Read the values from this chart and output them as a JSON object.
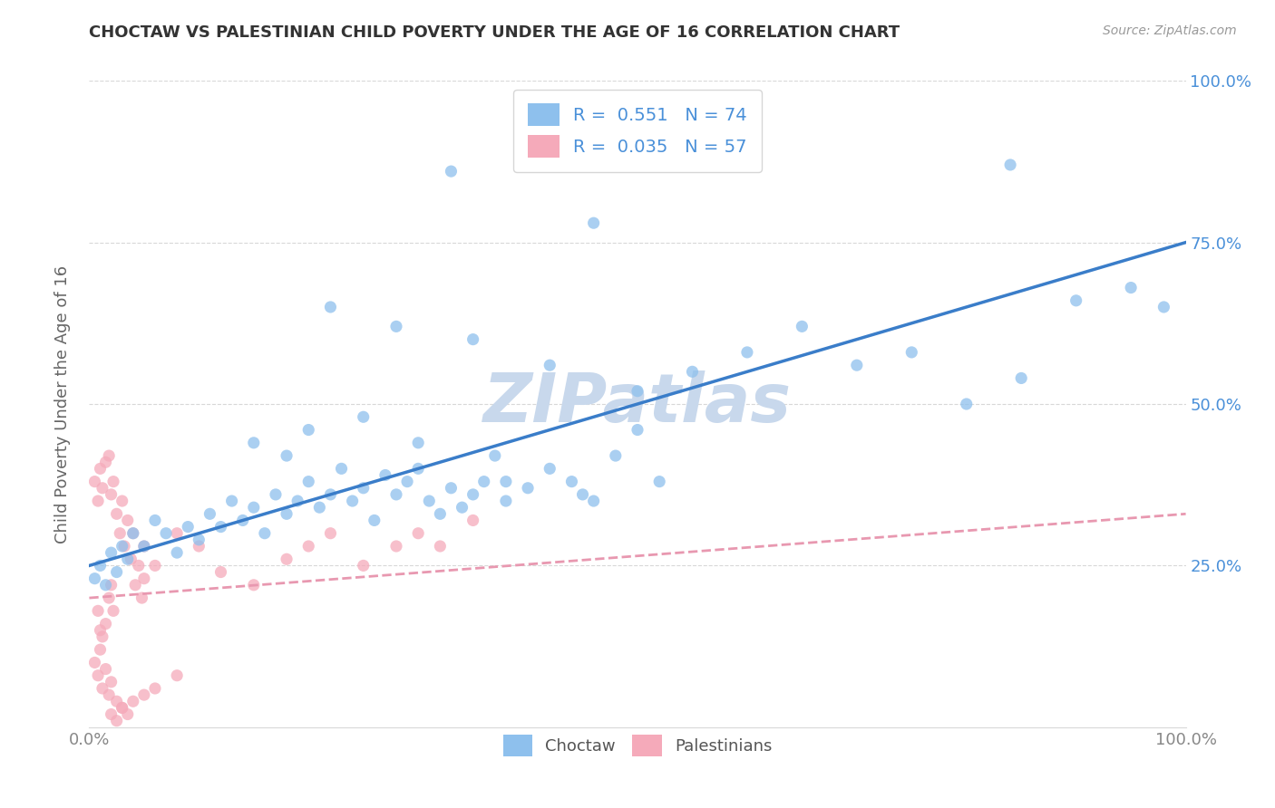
{
  "title": "CHOCTAW VS PALESTINIAN CHILD POVERTY UNDER THE AGE OF 16 CORRELATION CHART",
  "source": "Source: ZipAtlas.com",
  "ylabel": "Child Poverty Under the Age of 16",
  "xlim": [
    0,
    1
  ],
  "ylim": [
    0,
    1
  ],
  "choctaw_R": "0.551",
  "choctaw_N": "74",
  "palestinians_R": "0.035",
  "palestinians_N": "57",
  "choctaw_color": "#8ec0ed",
  "palestinians_color": "#f5aaba",
  "choctaw_line_color": "#3a7dc9",
  "palestinians_line_color": "#e898b0",
  "watermark": "ZIPatlas",
  "watermark_color": "#c8d8ec",
  "background_color": "#ffffff",
  "grid_color": "#d8d8d8",
  "tick_color_right": "#4a90d9",
  "tick_color_bottom": "#888888",
  "title_color": "#333333",
  "ylabel_color": "#666666",
  "choctaw_x": [
    0.005,
    0.01,
    0.015,
    0.02,
    0.025,
    0.03,
    0.035,
    0.04,
    0.05,
    0.06,
    0.07,
    0.08,
    0.09,
    0.1,
    0.11,
    0.12,
    0.13,
    0.14,
    0.15,
    0.16,
    0.17,
    0.18,
    0.19,
    0.2,
    0.21,
    0.22,
    0.23,
    0.24,
    0.25,
    0.26,
    0.27,
    0.28,
    0.29,
    0.3,
    0.31,
    0.32,
    0.33,
    0.34,
    0.35,
    0.36,
    0.37,
    0.38,
    0.4,
    0.42,
    0.44,
    0.46,
    0.48,
    0.5,
    0.33,
    0.46,
    0.84,
    0.5,
    0.55,
    0.6,
    0.65,
    0.7,
    0.75,
    0.8,
    0.85,
    0.9,
    0.95,
    0.98,
    0.22,
    0.28,
    0.35,
    0.42,
    0.15,
    0.18,
    0.2,
    0.25,
    0.3,
    0.38,
    0.45,
    0.52
  ],
  "choctaw_y": [
    0.23,
    0.25,
    0.22,
    0.27,
    0.24,
    0.28,
    0.26,
    0.3,
    0.28,
    0.32,
    0.3,
    0.27,
    0.31,
    0.29,
    0.33,
    0.31,
    0.35,
    0.32,
    0.34,
    0.3,
    0.36,
    0.33,
    0.35,
    0.38,
    0.34,
    0.36,
    0.4,
    0.35,
    0.37,
    0.32,
    0.39,
    0.36,
    0.38,
    0.4,
    0.35,
    0.33,
    0.37,
    0.34,
    0.36,
    0.38,
    0.42,
    0.35,
    0.37,
    0.4,
    0.38,
    0.35,
    0.42,
    0.46,
    0.86,
    0.78,
    0.87,
    0.52,
    0.55,
    0.58,
    0.62,
    0.56,
    0.58,
    0.5,
    0.54,
    0.66,
    0.68,
    0.65,
    0.65,
    0.62,
    0.6,
    0.56,
    0.44,
    0.42,
    0.46,
    0.48,
    0.44,
    0.38,
    0.36,
    0.38
  ],
  "palestinians_x": [
    0.005,
    0.008,
    0.01,
    0.012,
    0.015,
    0.018,
    0.02,
    0.022,
    0.025,
    0.028,
    0.03,
    0.032,
    0.035,
    0.038,
    0.04,
    0.042,
    0.045,
    0.048,
    0.05,
    0.005,
    0.008,
    0.01,
    0.012,
    0.015,
    0.018,
    0.02,
    0.025,
    0.03,
    0.008,
    0.01,
    0.012,
    0.015,
    0.018,
    0.02,
    0.022,
    0.05,
    0.06,
    0.08,
    0.1,
    0.12,
    0.15,
    0.18,
    0.2,
    0.22,
    0.25,
    0.28,
    0.3,
    0.32,
    0.35,
    0.02,
    0.025,
    0.03,
    0.035,
    0.04,
    0.05,
    0.06,
    0.08
  ],
  "palestinians_y": [
    0.38,
    0.35,
    0.4,
    0.37,
    0.41,
    0.42,
    0.36,
    0.38,
    0.33,
    0.3,
    0.35,
    0.28,
    0.32,
    0.26,
    0.3,
    0.22,
    0.25,
    0.2,
    0.23,
    0.1,
    0.08,
    0.12,
    0.06,
    0.09,
    0.05,
    0.07,
    0.04,
    0.03,
    0.18,
    0.15,
    0.14,
    0.16,
    0.2,
    0.22,
    0.18,
    0.28,
    0.25,
    0.3,
    0.28,
    0.24,
    0.22,
    0.26,
    0.28,
    0.3,
    0.25,
    0.28,
    0.3,
    0.28,
    0.32,
    0.02,
    0.01,
    0.03,
    0.02,
    0.04,
    0.05,
    0.06,
    0.08
  ]
}
